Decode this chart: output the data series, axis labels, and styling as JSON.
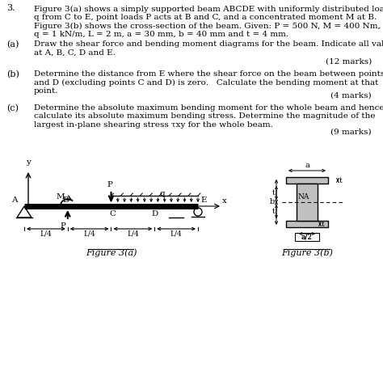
{
  "text_color": "#000000",
  "background_color": "#ffffff",
  "title_number": "3.",
  "main_text": "Figure 3(a) shows a simply supported beam ABCDE with uniformly distributed load\nq from C to E, point loads P acts at B and C, and a concentrated moment M at B.\nFigure 3(b) shows the cross-section of the beam. Given: P = 500 N, M = 400 Nm,\nq = 1 kN/m, L = 2 m, a = 30 mm, b = 40 mm and t = 4 mm.",
  "part_a_label": "(a)",
  "part_a_text": "Draw the shear force and bending moment diagrams for the beam. Indicate all values\nat A, B, C, D and E.",
  "part_a_marks": "(12 marks)",
  "part_b_label": "(b)",
  "part_b_text": "Determine the distance from E where the shear force on the beam between points C\nand D (excluding points C and D) is zero.   Calculate the bending moment at that\npoint.",
  "part_b_marks": "(4 marks)",
  "part_c_label": "(c)",
  "part_c_text": "Determine the absolute maximum bending moment for the whole beam and hence\ncalculate its absolute maximum bending stress. Determine the magnitude of the\nlargest in-plane shearing stress τxy for the whole beam.",
  "part_c_marks": "(9 marks)",
  "fig_a_caption": "Figure 3(a)",
  "fig_b_caption": "Figure 3(b)"
}
